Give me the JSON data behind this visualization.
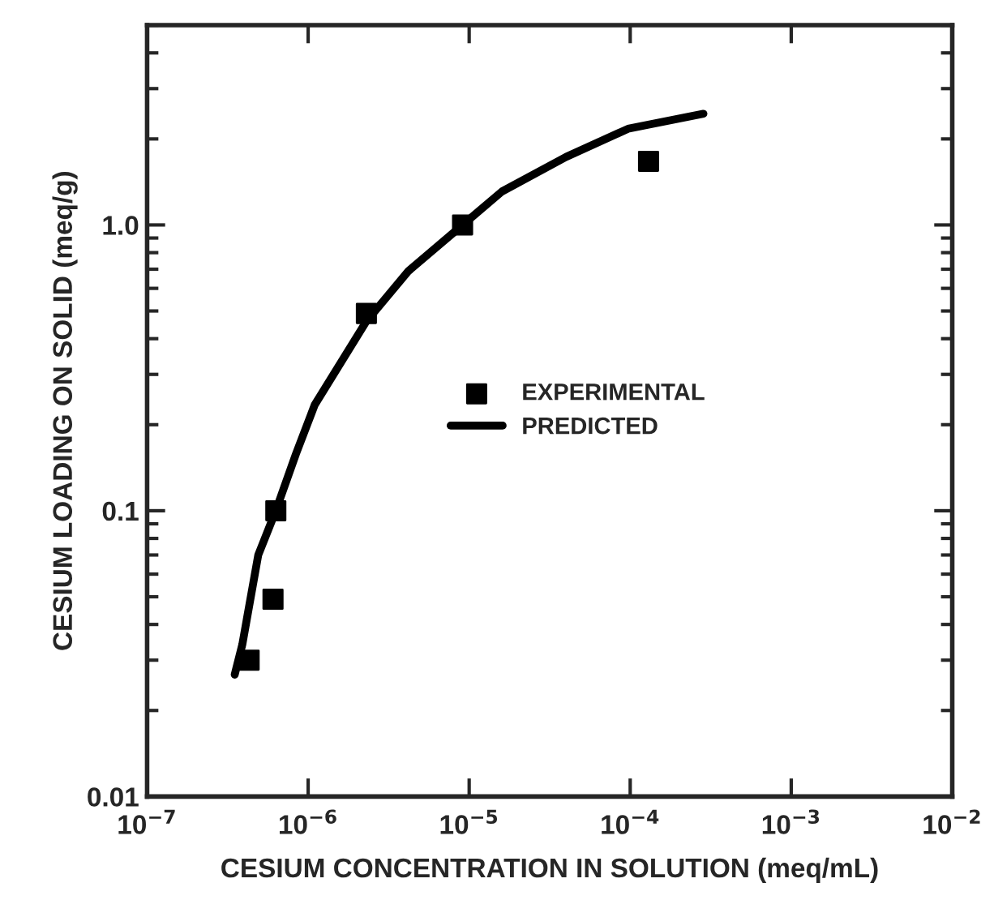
{
  "chart_data": {
    "type": "scatter",
    "xlabel": "CESIUM CONCENTRATION IN SOLUTION (meq/mL)",
    "ylabel": "CESIUM LOADING ON SOLID (meq/g)",
    "log": "xy",
    "xlim": [
      1e-07,
      0.01
    ],
    "ylim": [
      0.01,
      5
    ],
    "xticks": [
      {
        "value": 1e-07,
        "label": "10$^{−7}$"
      },
      {
        "value": 1e-06,
        "label": "10$^{−6}$"
      },
      {
        "value": 1e-05,
        "label": "10$^{−5}$"
      },
      {
        "value": 0.0001,
        "label": "10$^{−4}$"
      },
      {
        "value": 0.001,
        "label": "10$^{−3}$"
      },
      {
        "value": 0.01,
        "label": "10$^{−2}$"
      }
    ],
    "yticks": [
      0.01,
      0.1,
      {
        "value": 1,
        "label": "1.0"
      }
    ],
    "grid": false,
    "legend": "center",
    "series": [
      {
        "name": "EXPERIMENTAL",
        "marker": "square",
        "color": "#000000",
        "x": [
          4.3e-07,
          6.05e-07,
          6.3e-07,
          2.3e-06,
          9.1e-06,
          0.00013
        ],
        "values": [
          0.03,
          0.049,
          0.1,
          0.49,
          1.0,
          1.67
        ]
      },
      {
        "name": "PREDICTED",
        "type": "line",
        "marker": "none",
        "line_style": "solid",
        "color": "#000000",
        "x": [
          3.5e-07,
          3.9e-07,
          4.9e-07,
          6.3e-07,
          8.4e-07,
          1.1e-06,
          2.3e-06,
          4.2e-06,
          9.1e-06,
          1.6e-05,
          4e-05,
          9.7e-05,
          0.000285
        ],
        "values": [
          0.0267,
          0.034,
          0.07,
          0.1,
          0.158,
          0.235,
          0.46,
          0.69,
          1.0,
          1.31,
          1.73,
          2.17,
          2.45
        ]
      }
    ]
  }
}
